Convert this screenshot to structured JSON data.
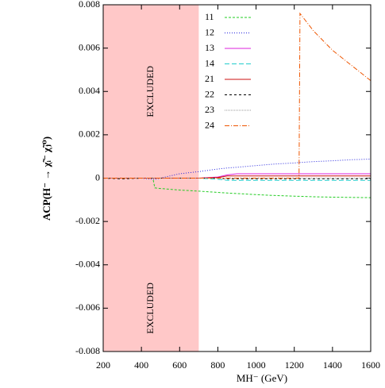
{
  "chart_data": {
    "type": "line",
    "xlabel": "MH⁻ (GeV)",
    "ylabel": "ACP(H⁻ → χ̃ᵢ⁻ χ̃ⱼ⁰)",
    "x": [
      200,
      300,
      400,
      460,
      470,
      500,
      600,
      700,
      800,
      850,
      900,
      1000,
      1100,
      1200,
      1225,
      1230,
      1300,
      1400,
      1500,
      1600
    ],
    "xlim": [
      200,
      1600
    ],
    "xticks": [
      200,
      400,
      600,
      800,
      1000,
      1200,
      1400,
      1600
    ],
    "ylim": [
      -0.008,
      0.008
    ],
    "yticks": [
      -0.008,
      -0.006,
      -0.004,
      -0.002,
      0,
      0.002,
      0.004,
      0.006,
      0.008
    ],
    "excluded_region": {
      "x": [
        200,
        700
      ],
      "color": "#ffc8c8",
      "labels": [
        "EXCLUDED",
        "EXCLUDED"
      ]
    },
    "series": [
      {
        "name": "11",
        "color": "#22cc22",
        "dash": "3,2",
        "values": [
          0,
          0,
          0,
          0,
          -0.00045,
          -0.00048,
          -0.00055,
          -0.0006,
          -0.00066,
          -0.00069,
          -0.00071,
          -0.00076,
          -0.0008,
          -0.00083,
          -0.00084,
          -0.00084,
          -0.00086,
          -0.00088,
          -0.00089,
          -0.0009
        ]
      },
      {
        "name": "12",
        "color": "#2222dd",
        "dash": "1,2",
        "values": [
          0,
          0,
          0,
          -5e-05,
          -5e-05,
          0,
          0.0002,
          0.0003,
          0.00042,
          0.00047,
          0.0005,
          0.00058,
          0.00065,
          0.0007,
          0.00072,
          0.00072,
          0.00076,
          0.0008,
          0.00085,
          0.00088
        ]
      },
      {
        "name": "13",
        "color": "#dd22dd",
        "dash": "none",
        "values": [
          0,
          0,
          0,
          0,
          0,
          0,
          0,
          0,
          5e-05,
          0.00015,
          0.0002,
          0.0002,
          0.0002,
          0.0002,
          0.0002,
          0.0002,
          0.0002,
          0.0002,
          0.0002,
          0.0002
        ]
      },
      {
        "name": "14",
        "color": "#22cccc",
        "dash": "6,3",
        "values": [
          0,
          0,
          0,
          0,
          0,
          0,
          0,
          0,
          -5e-05,
          -0.0001,
          -0.0001,
          -0.0001,
          -0.0001,
          -0.0001,
          -0.0001,
          -0.0001,
          -0.0001,
          -0.0001,
          -0.0001,
          -0.0001
        ]
      },
      {
        "name": "21",
        "color": "#cc1111",
        "dash": "none",
        "values": [
          0,
          0,
          0,
          0,
          0,
          0,
          0,
          0,
          3e-05,
          0.0001,
          0.0001,
          0.0001,
          0.0001,
          0.0001,
          0.0001,
          0.0001,
          0.0001,
          0.0001,
          0.0001,
          0.0001
        ]
      },
      {
        "name": "22",
        "color": "#000000",
        "dash": "3,3",
        "values": [
          0,
          -3e-05,
          0,
          0,
          0,
          0,
          0,
          0,
          0,
          -3e-05,
          -3e-05,
          -3e-05,
          -3e-05,
          -3e-05,
          -3e-05,
          -3e-05,
          -3e-05,
          -3e-05,
          -3e-05,
          -3e-05
        ]
      },
      {
        "name": "23",
        "color": "#999999",
        "dash": "1,1",
        "values": [
          0,
          0,
          0,
          0,
          0,
          0,
          0,
          0,
          0,
          0,
          0,
          0,
          0,
          0,
          0,
          0,
          0,
          0,
          0,
          0
        ]
      },
      {
        "name": "24",
        "color": "#ee5500",
        "dash": "6,2,1,2",
        "values": [
          0,
          0,
          0,
          0,
          0,
          0,
          0,
          0,
          0,
          0,
          0,
          0,
          0,
          0,
          0,
          0.0076,
          0.0068,
          0.0059,
          0.0052,
          0.0045
        ]
      }
    ]
  }
}
